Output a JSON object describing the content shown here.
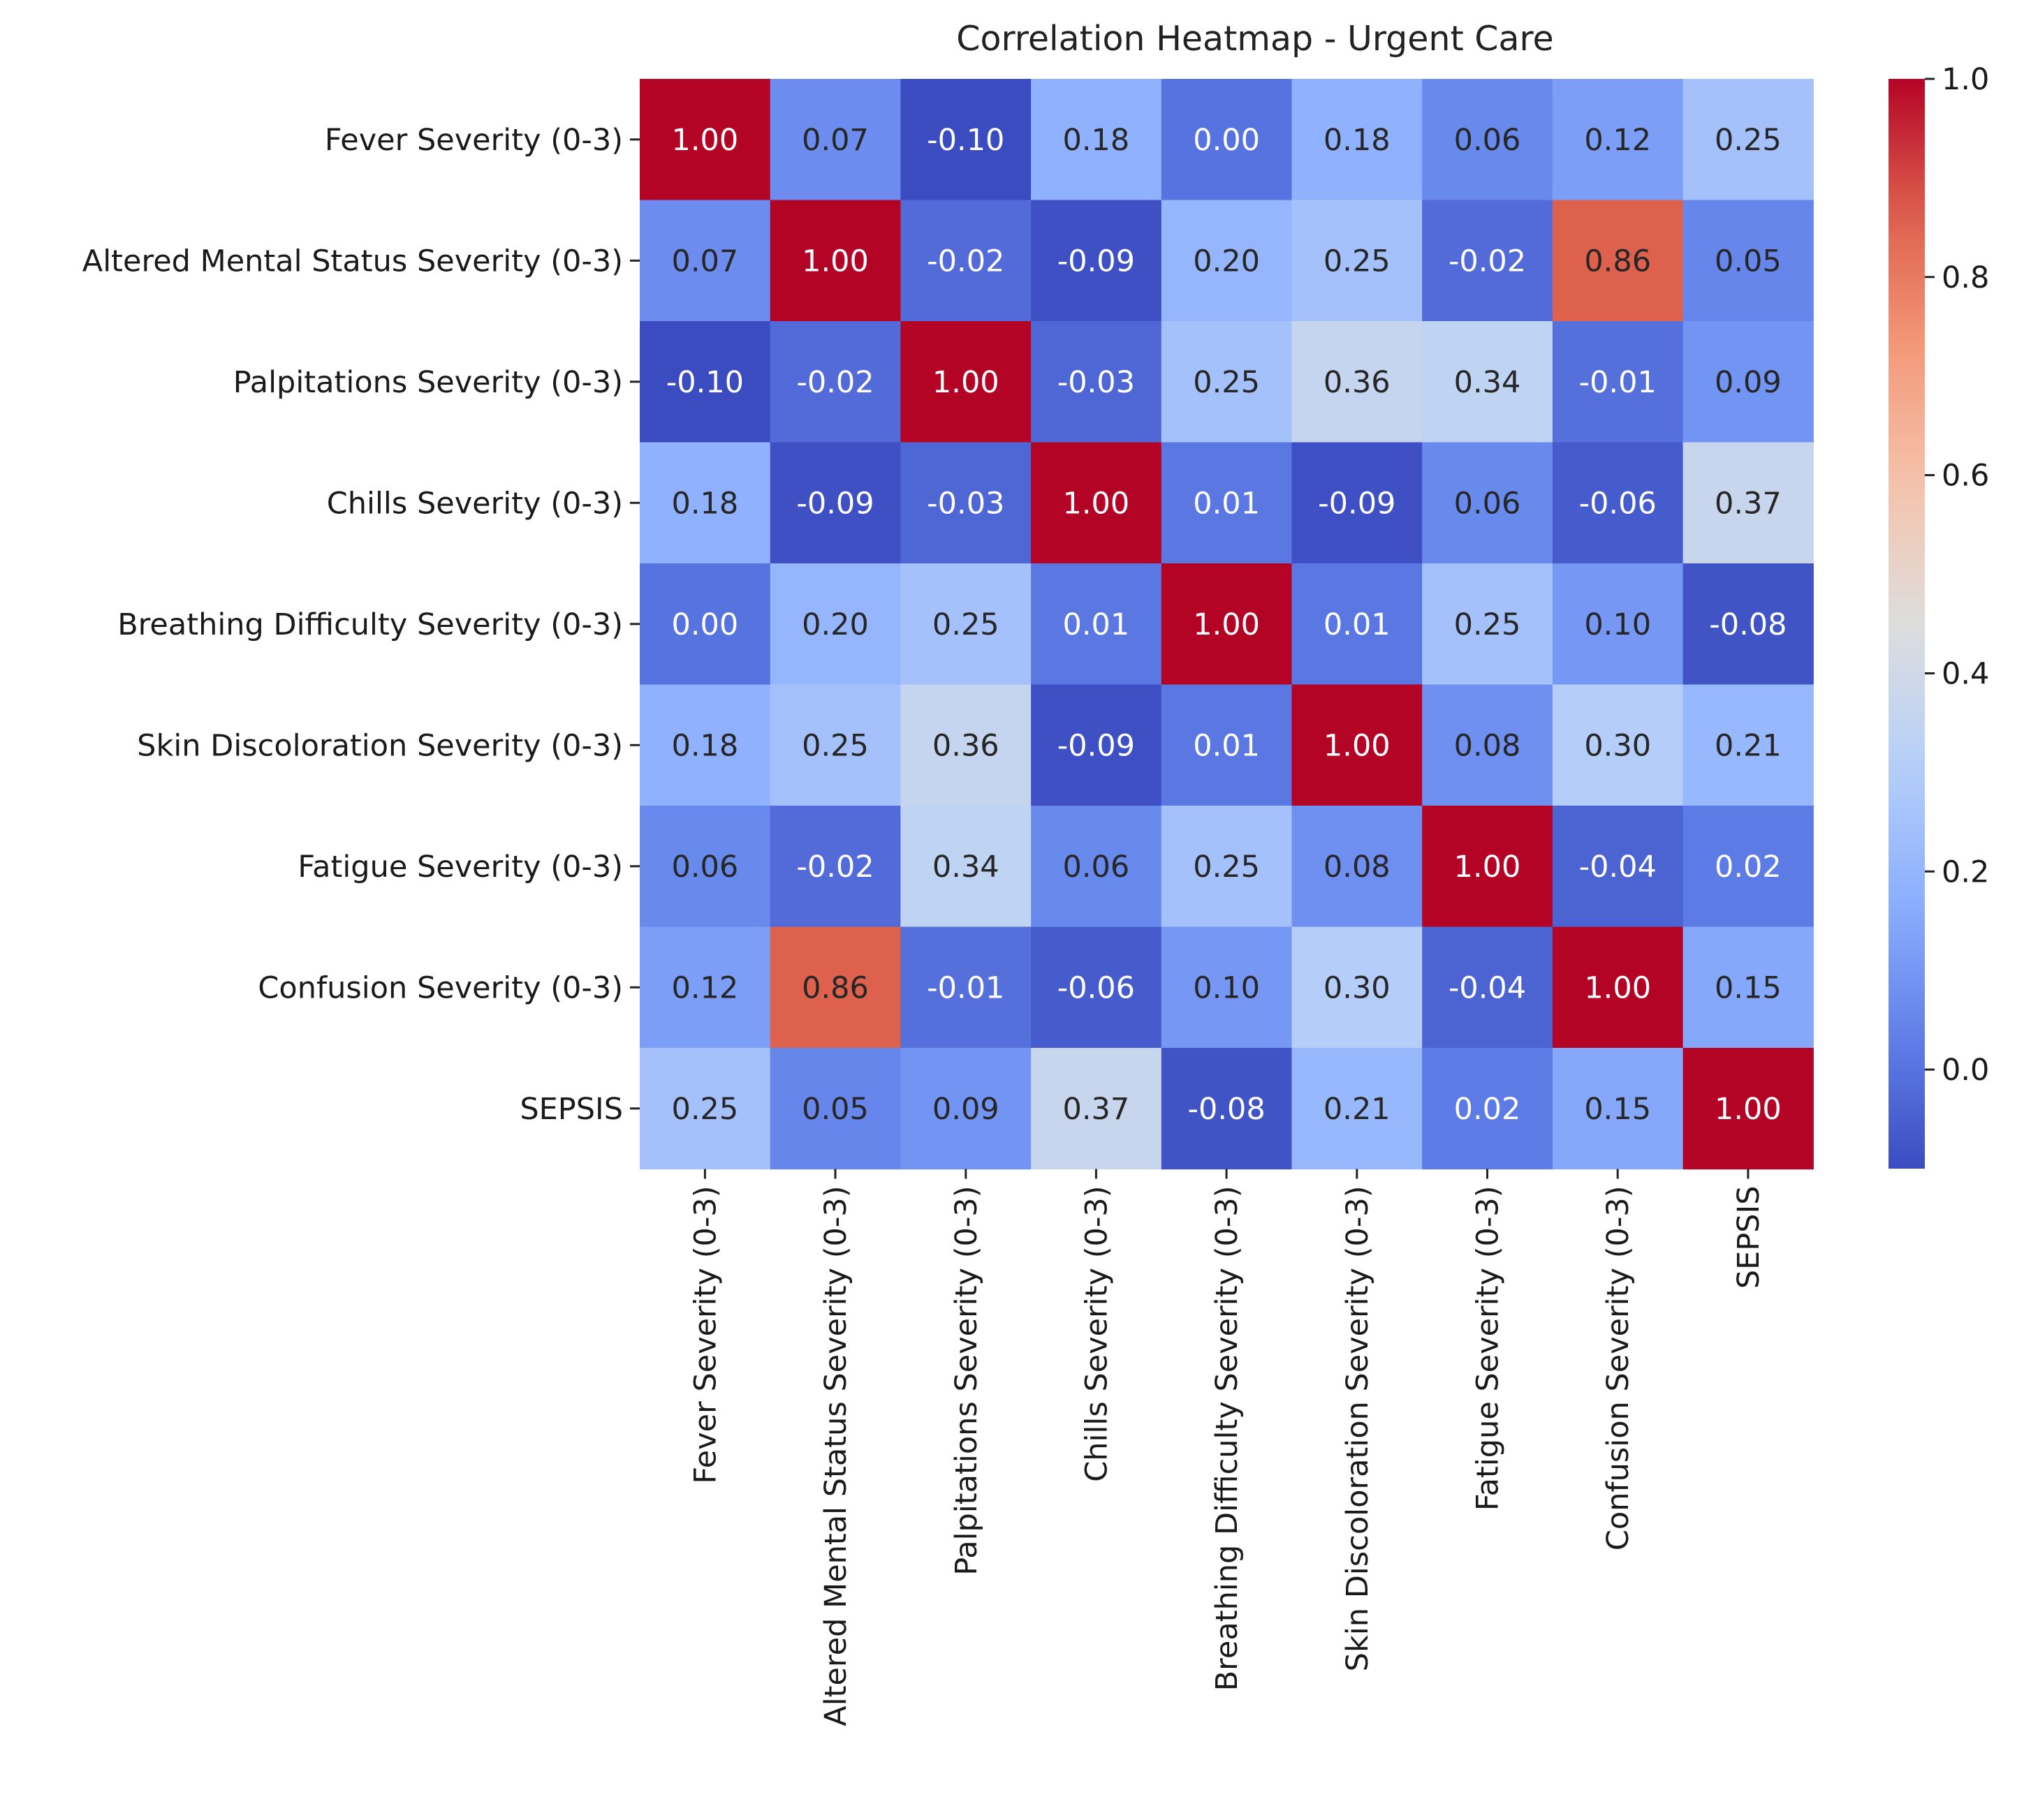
{
  "chart_data": {
    "type": "heatmap",
    "title": "Correlation Heatmap - Urgent Care",
    "rows": [
      "Fever Severity (0-3)",
      "Altered Mental Status Severity (0-3)",
      "Palpitations Severity (0-3)",
      "Chills Severity (0-3)",
      "Breathing Difficulty Severity (0-3)",
      "Skin Discoloration Severity (0-3)",
      "Fatigue Severity (0-3)",
      "Confusion Severity (0-3)",
      "SEPSIS"
    ],
    "columns": [
      "Fever Severity (0-3)",
      "Altered Mental Status Severity (0-3)",
      "Palpitations Severity (0-3)",
      "Chills Severity (0-3)",
      "Breathing Difficulty Severity (0-3)",
      "Skin Discoloration Severity (0-3)",
      "Fatigue Severity (0-3)",
      "Confusion Severity (0-3)",
      "SEPSIS"
    ],
    "values": [
      [
        1.0,
        0.07,
        -0.1,
        0.18,
        0.0,
        0.18,
        0.06,
        0.12,
        0.25
      ],
      [
        0.07,
        1.0,
        -0.02,
        -0.09,
        0.2,
        0.25,
        -0.02,
        0.86,
        0.05
      ],
      [
        -0.1,
        -0.02,
        1.0,
        -0.03,
        0.25,
        0.36,
        0.34,
        -0.01,
        0.09
      ],
      [
        0.18,
        -0.09,
        -0.03,
        1.0,
        0.01,
        -0.09,
        0.06,
        -0.06,
        0.37
      ],
      [
        0.0,
        0.2,
        0.25,
        0.01,
        1.0,
        0.01,
        0.25,
        0.1,
        -0.08
      ],
      [
        0.18,
        0.25,
        0.36,
        -0.09,
        0.01,
        1.0,
        0.08,
        0.3,
        0.21
      ],
      [
        0.06,
        -0.02,
        0.34,
        0.06,
        0.25,
        0.08,
        1.0,
        -0.04,
        0.02
      ],
      [
        0.12,
        0.86,
        -0.01,
        -0.06,
        0.1,
        0.3,
        -0.04,
        1.0,
        0.15
      ],
      [
        0.25,
        0.05,
        0.09,
        0.37,
        -0.08,
        0.21,
        0.02,
        0.15,
        1.0
      ]
    ],
    "annotation_format": "2 decimals",
    "colormap": "coolwarm",
    "color_range": [
      -0.1,
      1.0
    ],
    "colorbar_ticks": [
      "0.0",
      "0.2",
      "0.4",
      "0.6",
      "0.8",
      "1.0"
    ],
    "colorbar_tick_values": [
      0.0,
      0.2,
      0.4,
      0.6,
      0.8,
      1.0
    ],
    "grid": false,
    "legend": "colorbar right"
  }
}
